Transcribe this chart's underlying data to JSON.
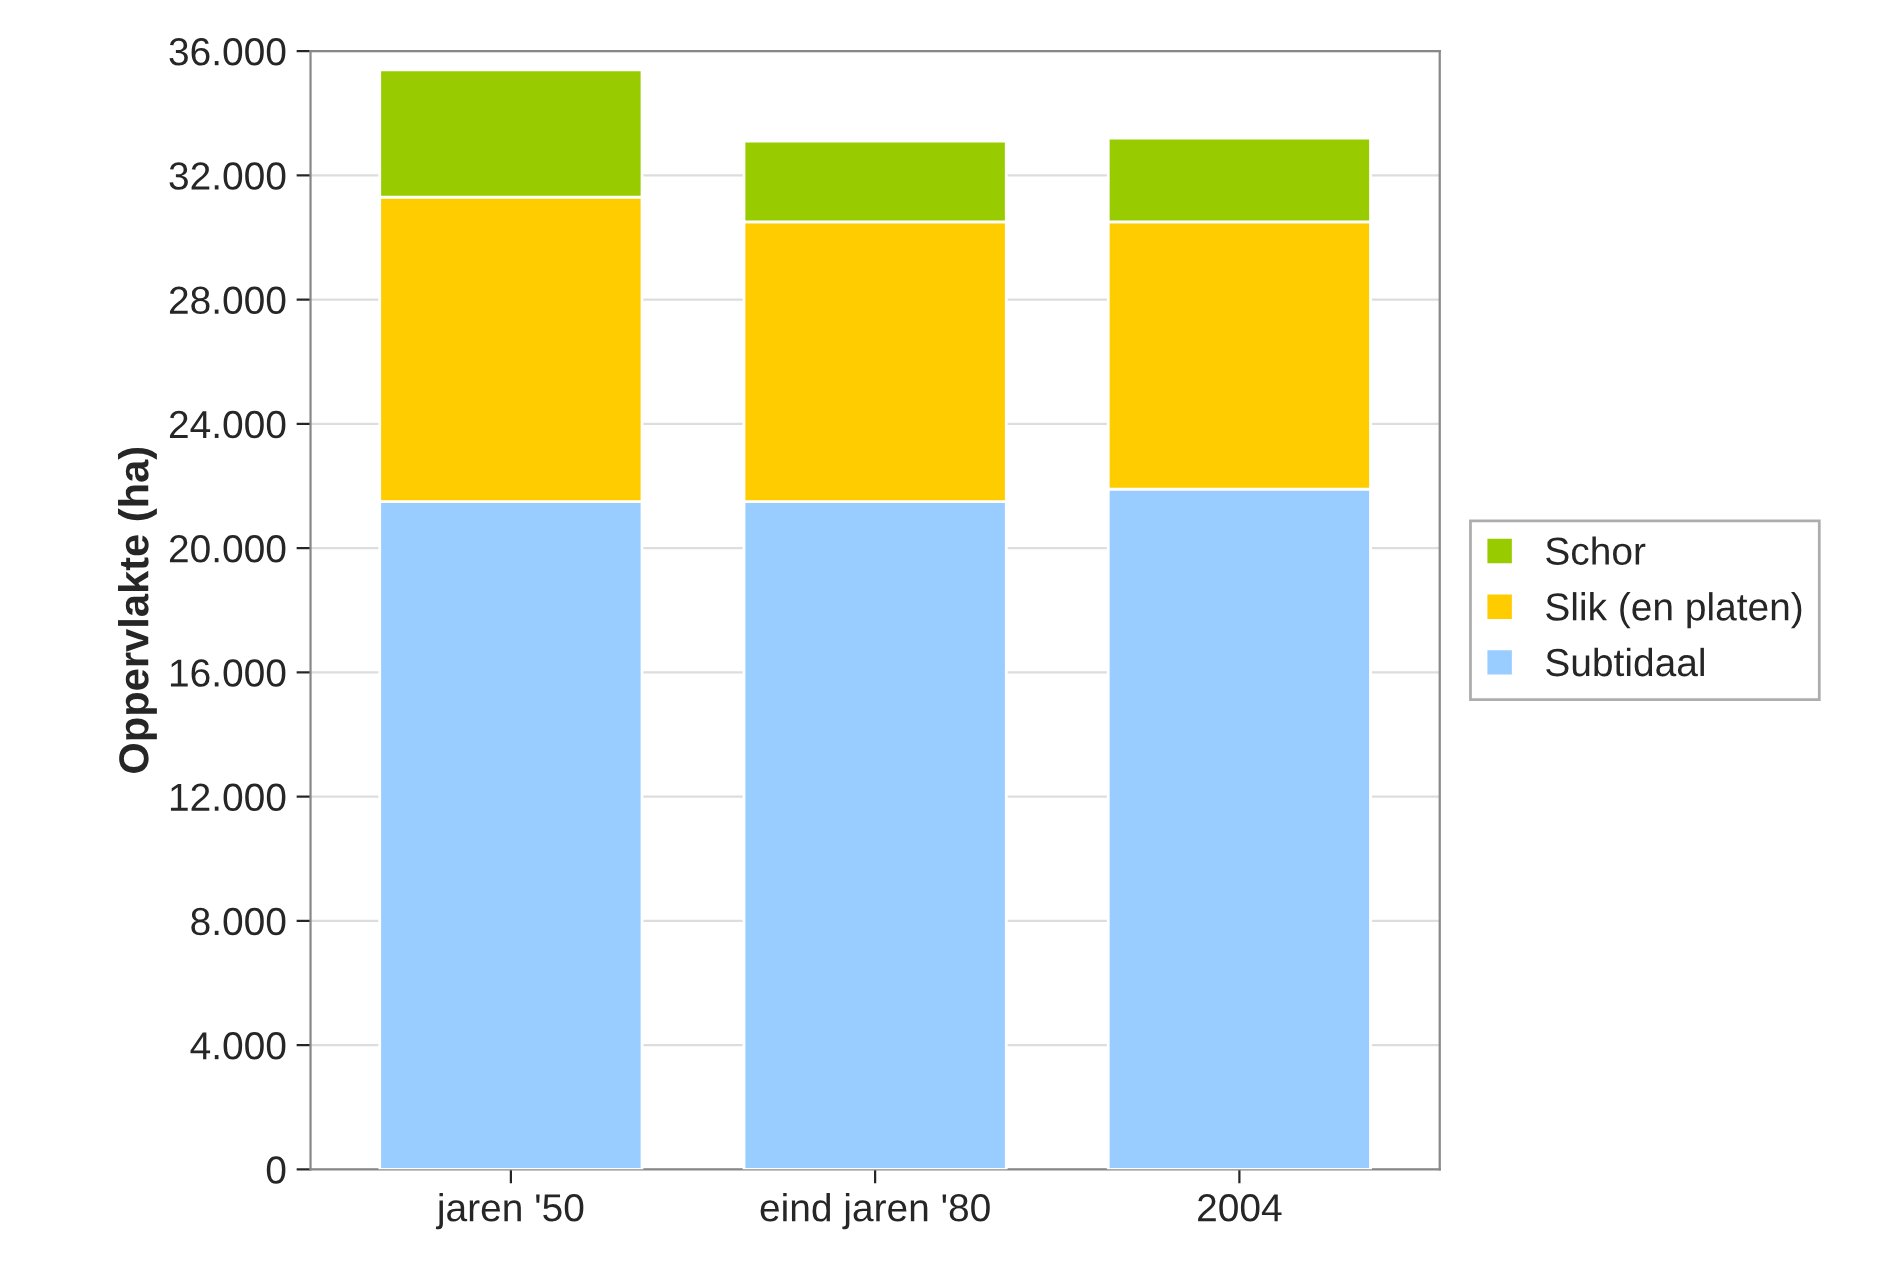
{
  "chart_data": {
    "type": "bar",
    "stacked": true,
    "ylabel": "Oppervlakte (ha)",
    "categories": [
      "jaren '50",
      "eind jaren '80",
      "2004"
    ],
    "series": [
      {
        "name": "Subtidaal",
        "color": "#99ccff",
        "values": [
          21500,
          21500,
          21900
        ]
      },
      {
        "name": "Slik (en platen)",
        "color": "#ffcc00",
        "values": [
          9800,
          9000,
          8600
        ]
      },
      {
        "name": "Schor",
        "color": "#99cc00",
        "values": [
          4100,
          2600,
          2700
        ]
      }
    ],
    "ylim": [
      0,
      36000
    ],
    "yticks": [
      0,
      {
        "value": 4000,
        "label": "4.000"
      },
      {
        "value": 8000,
        "label": "8.000"
      },
      {
        "value": 12000,
        "label": "12.000"
      },
      {
        "value": 16000,
        "label": "16.000"
      },
      {
        "value": 20000,
        "label": "20.000"
      },
      {
        "value": 24000,
        "label": "24.000"
      },
      {
        "value": 28000,
        "label": "28.000"
      },
      {
        "value": 32000,
        "label": "32.000"
      },
      {
        "value": 36000,
        "label": "36.000"
      }
    ],
    "grid": "y",
    "legend": "right"
  }
}
